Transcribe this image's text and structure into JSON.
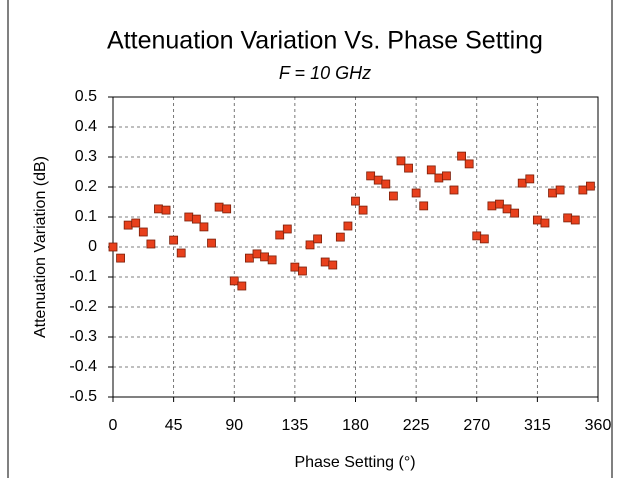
{
  "chart_data": {
    "type": "scatter",
    "title": "Attenuation Variation Vs. Phase Setting",
    "subtitle": "F = 10 GHz",
    "x_label": "Phase Setting (°)",
    "y_label": "Attenuation Variation (dB)",
    "color": "#e8401c",
    "grid": true,
    "xlim": [
      0,
      360
    ],
    "xticks": [
      0,
      45,
      90,
      135,
      180,
      225,
      270,
      315,
      360
    ],
    "ylim": [
      -0.5,
      0.5
    ],
    "yticks": [
      -0.5,
      -0.4,
      -0.3,
      -0.2,
      -0.1,
      0,
      0.1,
      0.2,
      0.3,
      0.4,
      0.5
    ],
    "x": [
      0,
      5.625,
      11.25,
      16.875,
      22.5,
      28.125,
      33.75,
      39.375,
      45,
      50.625,
      56.25,
      61.875,
      67.5,
      73.125,
      78.75,
      84.375,
      90,
      95.625,
      101.25,
      106.875,
      112.5,
      118.125,
      123.75,
      129.375,
      135,
      140.625,
      146.25,
      151.875,
      157.5,
      163.125,
      168.75,
      174.375,
      180,
      185.625,
      191.25,
      196.875,
      202.5,
      208.125,
      213.75,
      219.375,
      225,
      230.625,
      236.25,
      241.875,
      247.5,
      253.125,
      258.75,
      264.375,
      270,
      275.625,
      281.25,
      286.875,
      292.5,
      298.125,
      303.75,
      309.375,
      315,
      320.625,
      326.25,
      331.875,
      337.5,
      343.125,
      348.75,
      354.375
    ],
    "values": [
      0,
      -0.037,
      0.073,
      0.08,
      0.05,
      0.01,
      0.127,
      0.123,
      0.023,
      -0.02,
      0.1,
      0.093,
      0.067,
      0.013,
      0.133,
      0.127,
      -0.113,
      -0.13,
      -0.037,
      -0.023,
      -0.033,
      -0.043,
      0.04,
      0.06,
      -0.067,
      -0.08,
      0.007,
      0.027,
      -0.05,
      -0.06,
      0.033,
      0.07,
      0.153,
      0.123,
      0.237,
      0.223,
      0.21,
      0.17,
      0.287,
      0.263,
      0.18,
      0.137,
      0.257,
      0.23,
      0.237,
      0.19,
      0.303,
      0.277,
      0.037,
      0.027,
      0.137,
      0.143,
      0.127,
      0.113,
      0.213,
      0.227,
      0.09,
      0.08,
      0.18,
      0.19,
      0.097,
      0.09,
      0.19,
      0.203
    ]
  }
}
